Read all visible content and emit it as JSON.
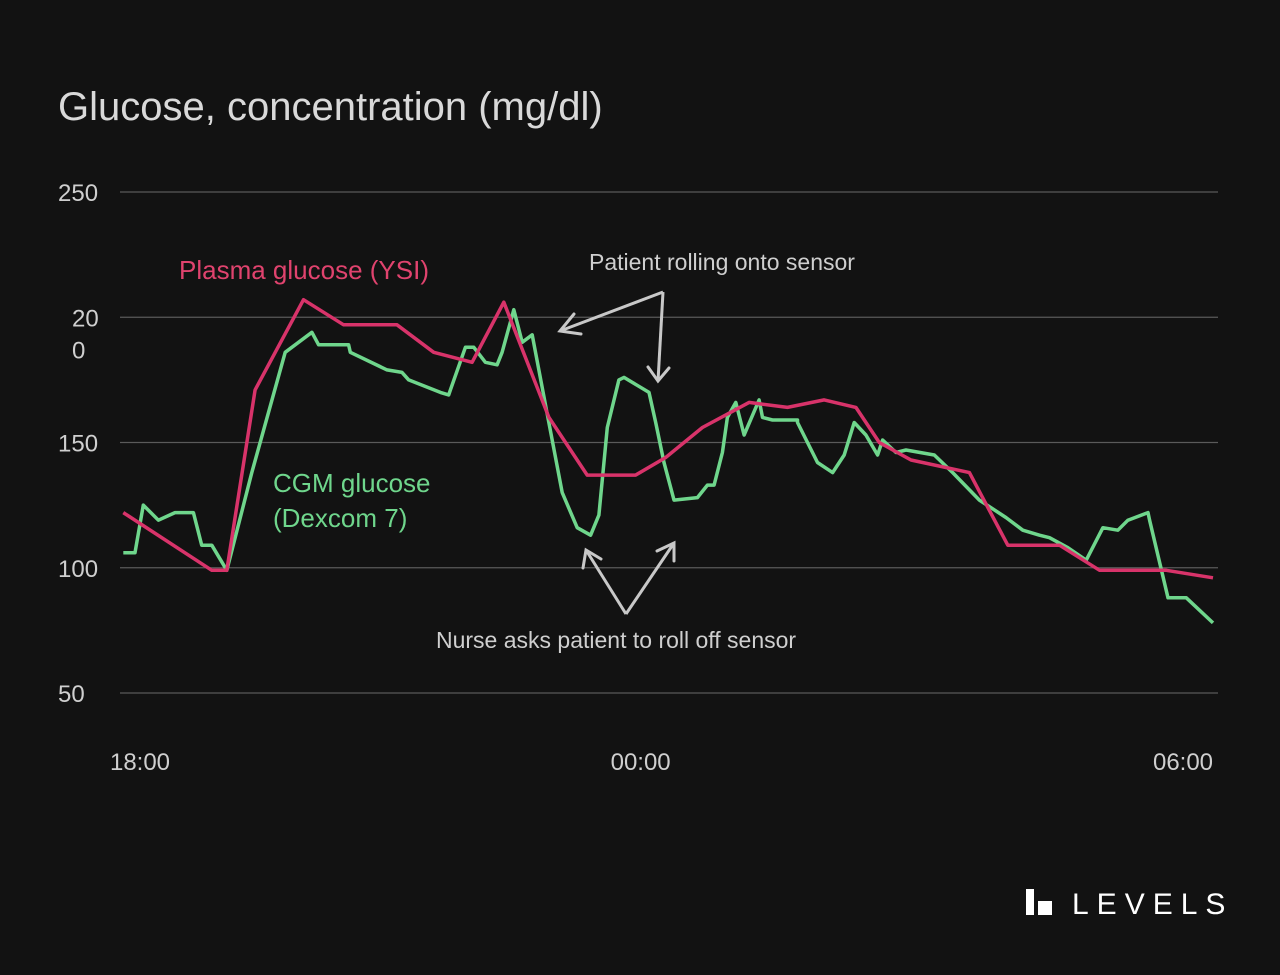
{
  "brand": {
    "name": "LEVELS",
    "logo_icon": "levels-logo-icon"
  },
  "colors": {
    "background": "#121212",
    "plasma": "#d8336a",
    "cgm": "#6fd68c",
    "grid": "#5a5a5a",
    "text": "#cfcfcf"
  },
  "chart_data": {
    "type": "line",
    "title": "Glucose, concentration (mg/dl)",
    "xlabel": "",
    "ylabel": "",
    "x_unit": "hours since 18:00",
    "xlim": [
      -0.15,
      6.5
    ],
    "ylim": [
      50,
      250
    ],
    "y_ticks": [
      {
        "value": 250,
        "label": "250"
      },
      {
        "value": 200,
        "label": "20\n0"
      },
      {
        "value": 150,
        "label": "150"
      },
      {
        "value": 100,
        "label": "100"
      },
      {
        "value": 50,
        "label": "50"
      }
    ],
    "x_ticks": [
      {
        "value": 0,
        "label": "18:00"
      },
      {
        "value": 3,
        "label": "00:00"
      },
      {
        "value": 6.25,
        "label": "06:00"
      }
    ],
    "grid": true,
    "series": [
      {
        "name": "Plasma glucose (YSI)",
        "color": "#d8336a",
        "x": [
          -0.1,
          0.43,
          0.52,
          0.69,
          0.98,
          1.22,
          1.54,
          1.76,
          1.99,
          2.18,
          2.45,
          2.68,
          2.97,
          3.15,
          3.37,
          3.65,
          3.88,
          4.1,
          4.29,
          4.43,
          4.62,
          4.97,
          5.2,
          5.51,
          5.75,
          6.15,
          6.43
        ],
        "y": [
          122,
          99,
          99,
          171,
          207,
          197,
          197,
          186,
          182,
          206,
          160,
          137,
          137,
          144,
          156,
          166,
          164,
          167,
          164,
          150,
          143,
          138,
          109,
          109,
          99,
          99,
          96
        ]
      },
      {
        "name": "CGM glucose (Dexcom 7)",
        "color": "#6fd68c",
        "x": [
          -0.1,
          -0.03,
          0.02,
          0.11,
          0.21,
          0.32,
          0.37,
          0.43,
          0.52,
          0.67,
          0.87,
          1.03,
          1.07,
          1.25,
          1.26,
          1.48,
          1.57,
          1.61,
          1.8,
          1.85,
          1.86,
          1.95,
          2.0,
          2.07,
          2.14,
          2.17,
          2.24,
          2.29,
          2.35,
          2.43,
          2.53,
          2.62,
          2.7,
          2.75,
          2.8,
          2.87,
          2.9,
          3.05,
          3.09,
          3.14,
          3.2,
          3.34,
          3.4,
          3.44,
          3.49,
          3.52,
          3.57,
          3.62,
          3.71,
          3.73,
          3.79,
          3.94,
          3.94,
          4.06,
          4.15,
          4.22,
          4.28,
          4.35,
          4.42,
          4.45,
          4.53,
          4.59,
          4.76,
          4.87,
          5.03,
          5.19,
          5.29,
          5.39,
          5.45,
          5.56,
          5.67,
          5.77,
          5.86,
          5.92,
          6.04,
          6.05,
          6.16,
          6.27,
          6.43
        ],
        "y": [
          106,
          106,
          125,
          119,
          122,
          122,
          109,
          109,
          99,
          138,
          186,
          194,
          189,
          189,
          186,
          179,
          178,
          175,
          170,
          169,
          171,
          188,
          188,
          182,
          181,
          186,
          203,
          190,
          193,
          165,
          130,
          116,
          113,
          121,
          156,
          175,
          176,
          170,
          158,
          142,
          127,
          128,
          133,
          133,
          146,
          160,
          166,
          153,
          167,
          160,
          159,
          159,
          158,
          142,
          138,
          145,
          158,
          153,
          145,
          151,
          146,
          147,
          145,
          138,
          127,
          120,
          115,
          113,
          112,
          108,
          103,
          116,
          115,
          119,
          122,
          119,
          88,
          88,
          78
        ]
      }
    ],
    "annotations": [
      {
        "text": "Plasma glucose (YSI)",
        "role": "series-label"
      },
      {
        "text": "CGM glucose\n(Dexcom 7)",
        "role": "series-label"
      },
      {
        "text": "Patient rolling onto sensor",
        "role": "note"
      },
      {
        "text": "Nurse asks patient to roll off sensor",
        "role": "note"
      }
    ]
  }
}
